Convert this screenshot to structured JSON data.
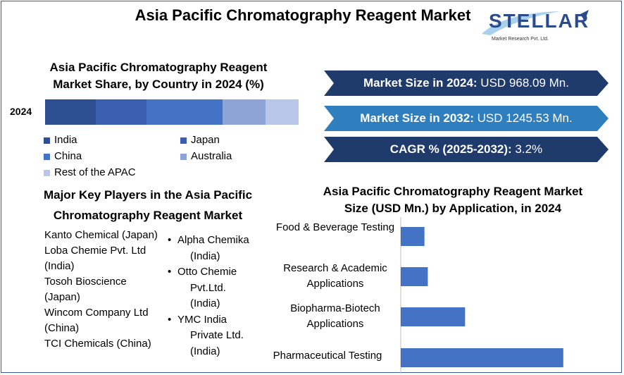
{
  "title": "Asia Pacific Chromatography Reagent Market",
  "logo": {
    "name": "STELLAR",
    "subtitle": "Market Research Pvt. Ltd."
  },
  "share_chart": {
    "title": "Asia Pacific Chromatography Reagent Market Share, by Country in 2024 (%)",
    "row_label": "2024",
    "legend": [
      {
        "label": "India",
        "color": "#2f4f93"
      },
      {
        "label": "Japan",
        "color": "#3b5fb0"
      },
      {
        "label": "China",
        "color": "#4472c4"
      },
      {
        "label": "Australia",
        "color": "#8fa4d6"
      },
      {
        "label": "Rest of the APAC",
        "color": "#b9c6e8"
      }
    ]
  },
  "banners": [
    {
      "label": "Market Size in 2024:",
      "value": "USD 968.09 Mn.",
      "color": "#1f3b6b"
    },
    {
      "label": "Market Size in 2032:",
      "value": "USD 1245.53 Mn.",
      "color": "#2f7fbf"
    },
    {
      "label": "CAGR % (2025-2032):",
      "value": "3.2%",
      "color": "#1f3b6b"
    }
  ],
  "players": {
    "title": "Major Key Players in the Asia Pacific Chromatography Reagent Market",
    "left": [
      "Kanto Chemical (Japan)",
      "Loba Chemie Pvt. Ltd (India)",
      "Tosoh Bioscience (Japan)",
      "Wincom Company Ltd (China)",
      "TCI Chemicals (China)"
    ],
    "right_lines": [
      [
        "Alpha Chemika",
        "(India)"
      ],
      [
        "Otto Chemie",
        "Pvt.Ltd.",
        "(India)"
      ],
      [
        "YMC India",
        "Private Ltd.",
        "(India)"
      ]
    ]
  },
  "chart_data": [
    {
      "type": "bar",
      "orientation": "horizontal-stacked",
      "title": "Asia Pacific Chromatography Reagent Market Share, by Country in 2024 (%)",
      "categories": [
        "2024"
      ],
      "series": [
        {
          "name": "India",
          "values": [
            20
          ]
        },
        {
          "name": "Japan",
          "values": [
            20
          ]
        },
        {
          "name": "China",
          "values": [
            30
          ]
        },
        {
          "name": "Australia",
          "values": [
            17
          ]
        },
        {
          "name": "Rest of the APAC",
          "values": [
            13
          ]
        }
      ]
    },
    {
      "type": "bar",
      "orientation": "horizontal",
      "title": "Asia Pacific Chromatography Reagent Market Size (USD Mn.) by Application, in 2024",
      "categories": [
        "Food & Beverage Testing",
        "Research & Academic Applications",
        "Biopharma-Biotech Applications",
        "Pharmaceutical Testing"
      ],
      "values": [
        35,
        40,
        95,
        240
      ],
      "color": "#4472c4"
    }
  ]
}
